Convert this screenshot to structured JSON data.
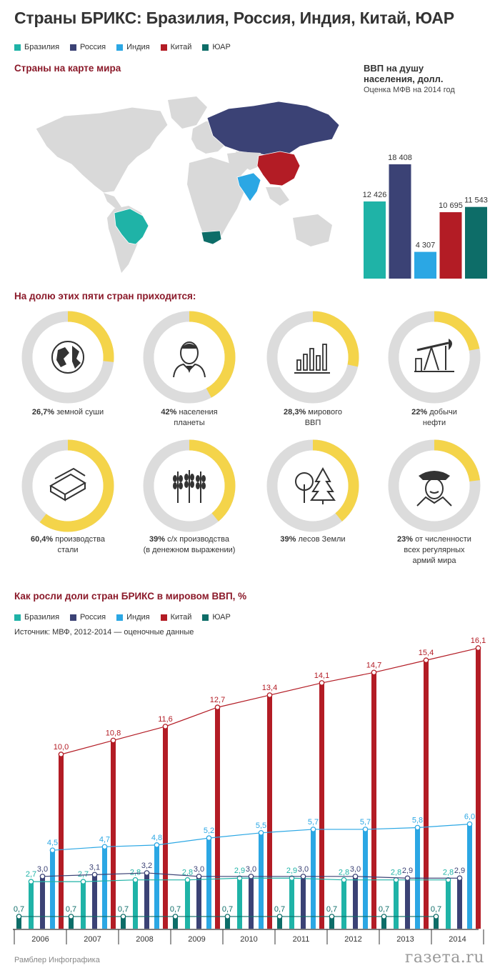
{
  "page": {
    "title": "Страны БРИКС: Бразилия, Россия, Индия, Китай, ЮАР",
    "footer_left": "Рамблер Инфографика",
    "footer_right": "газета.ru"
  },
  "legend": [
    {
      "name": "Бразилия",
      "color": "#1fb3a7"
    },
    {
      "name": "Россия",
      "color": "#3b4275"
    },
    {
      "name": "Индия",
      "color": "#2ba7e4"
    },
    {
      "name": "Китай",
      "color": "#b31c25"
    },
    {
      "name": "ЮАР",
      "color": "#0d6d68"
    }
  ],
  "map": {
    "title": "Страны на карте мира"
  },
  "gdp_per_capita": {
    "title_line1": "ВВП на душу",
    "title_line2": "населения, долл.",
    "subtitle": "Оценка МФВ на 2014 год"
  },
  "shares": {
    "title": "На долю этих пяти стран приходится:",
    "items": [
      {
        "value": "26,7%",
        "text": " земной суши",
        "text2": "",
        "fraction": 0.267,
        "icon": "globe-icon"
      },
      {
        "value": "42%",
        "text": " населения",
        "text2": "планеты",
        "fraction": 0.42,
        "icon": "person-icon"
      },
      {
        "value": "28,3%",
        "text": " мирового",
        "text2": "ВВП",
        "fraction": 0.283,
        "icon": "bar-chart-icon"
      },
      {
        "value": "22%",
        "text": " добычи",
        "text2": "нефти",
        "fraction": 0.22,
        "icon": "oil-pump-icon"
      },
      {
        "value": "60,4%",
        "text": " производства",
        "text2": "стали",
        "fraction": 0.604,
        "icon": "steel-beam-icon"
      },
      {
        "value": "39%",
        "text": " с/х производства",
        "text2": "(в денежном выражении)",
        "fraction": 0.39,
        "icon": "wheat-icon"
      },
      {
        "value": "39%",
        "text": " лесов Земли",
        "text2": "",
        "fraction": 0.39,
        "icon": "trees-icon"
      },
      {
        "value": "23%",
        "text": " от численности",
        "text2": "всех регулярных",
        "text3": "армий мира",
        "fraction": 0.23,
        "icon": "soldier-icon"
      }
    ]
  },
  "growth": {
    "title": "Как росли доли стран БРИКС в мировом ВВП, %",
    "source": "Источник: МВФ, 2012-2014 — оценочные данные"
  },
  "chart_data": [
    {
      "type": "bar",
      "title": "ВВП на душу населения, долл.",
      "subtitle": "Оценка МФВ на 2014 год",
      "categories": [
        "Бразилия",
        "Россия",
        "Индия",
        "Китай",
        "ЮАР"
      ],
      "values": [
        12426,
        18408,
        4307,
        10695,
        11543
      ],
      "value_labels": [
        "12 426",
        "18 408",
        "4 307",
        "10 695",
        "11 543"
      ],
      "colors": [
        "#1fb3a7",
        "#3b4275",
        "#2ba7e4",
        "#b31c25",
        "#0d6d68"
      ]
    },
    {
      "type": "bar",
      "title": "Как росли доли стран БРИКС в мировом ВВП, %",
      "categories": [
        "2006",
        "2007",
        "2008",
        "2009",
        "2010",
        "2011",
        "2012",
        "2013",
        "2014"
      ],
      "series": [
        {
          "name": "ЮАР",
          "color": "#0d6d68",
          "values": [
            0.7,
            0.7,
            0.7,
            0.7,
            0.7,
            0.7,
            0.7,
            0.7,
            0.7
          ],
          "labels": [
            "0,7",
            "0,7",
            "0,7",
            "0,7",
            "0,7",
            "0,7",
            "0,7",
            "0,7",
            "0,7"
          ]
        },
        {
          "name": "Бразилия",
          "color": "#1fb3a7",
          "values": [
            2.7,
            2.7,
            2.8,
            2.8,
            2.9,
            2.9,
            2.8,
            2.8,
            2.8
          ],
          "labels": [
            "2,7",
            "2,7",
            "2,8",
            "2,8",
            "2,9",
            "2,9",
            "2,8",
            "2,8",
            "2,8"
          ]
        },
        {
          "name": "Россия",
          "color": "#3b4275",
          "values": [
            3.0,
            3.1,
            3.2,
            3.0,
            3.0,
            3.0,
            3.0,
            2.9,
            2.9
          ],
          "labels": [
            "3,0",
            "3,1",
            "3,2",
            "3,0",
            "3,0",
            "3,0",
            "3,0",
            "2,9",
            "2,9"
          ]
        },
        {
          "name": "Индия",
          "color": "#2ba7e4",
          "values": [
            4.5,
            4.7,
            4.8,
            5.2,
            5.5,
            5.7,
            5.7,
            5.8,
            6.0
          ],
          "labels": [
            "4,5",
            "4,7",
            "4,8",
            "5,2",
            "5,5",
            "5,7",
            "5,7",
            "5,8",
            "6,0"
          ]
        },
        {
          "name": "Китай",
          "color": "#b31c25",
          "values": [
            10.0,
            10.8,
            11.6,
            12.7,
            13.4,
            14.1,
            14.7,
            15.4,
            16.1
          ],
          "labels": [
            "10,0",
            "10,8",
            "11,6",
            "12,7",
            "13,4",
            "14,1",
            "14,7",
            "15,4",
            "16,1"
          ]
        }
      ],
      "ylim": [
        0,
        16.1
      ]
    }
  ]
}
